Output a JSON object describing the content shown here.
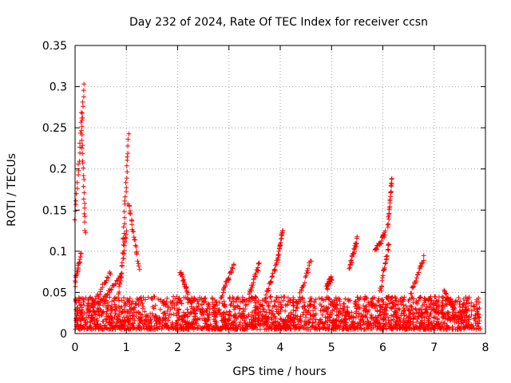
{
  "chart_data": {
    "type": "scatter",
    "title": "Day 232 of 2024, Rate Of TEC Index for receiver ccsn",
    "xlabel": "GPS time / hours",
    "ylabel": "ROTI / TECUs",
    "xlim": [
      0,
      8
    ],
    "ylim": [
      0,
      0.35
    ],
    "xticks": [
      0,
      1,
      2,
      3,
      4,
      5,
      6,
      7,
      8
    ],
    "xtick_labels": [
      "0",
      "1",
      "2",
      "3",
      "4",
      "5",
      "6",
      "7",
      "8"
    ],
    "yticks": [
      0,
      0.05,
      0.1,
      0.15,
      0.2,
      0.25,
      0.3,
      0.35
    ],
    "ytick_labels": [
      "0",
      "0.05",
      "0.1",
      "0.15",
      "0.2",
      "0.25",
      "0.3",
      "0.35"
    ],
    "grid": true,
    "marker": "plus",
    "color": "#ff0000",
    "background_band": {
      "x_start": 0,
      "x_end": 7.9,
      "y_min": 0.005,
      "y_max": 0.045
    },
    "tracks": [
      {
        "x_start": 0.0,
        "x_end": 0.18,
        "y_start": 0.14,
        "y_end": 0.305
      },
      {
        "x_start": 0.0,
        "x_end": 0.12,
        "y_start": 0.06,
        "y_end": 0.1
      },
      {
        "x_start": 0.12,
        "x_end": 0.2,
        "y_start": 0.27,
        "y_end": 0.12
      },
      {
        "x_start": 0.3,
        "x_end": 0.7,
        "y_start": 0.03,
        "y_end": 0.075
      },
      {
        "x_start": 0.55,
        "x_end": 0.9,
        "y_start": 0.04,
        "y_end": 0.07
      },
      {
        "x_start": 0.85,
        "x_end": 1.0,
        "y_start": 0.05,
        "y_end": 0.125
      },
      {
        "x_start": 0.93,
        "x_end": 1.04,
        "y_start": 0.1,
        "y_end": 0.24
      },
      {
        "x_start": 1.04,
        "x_end": 1.25,
        "y_start": 0.16,
        "y_end": 0.08
      },
      {
        "x_start": 2.05,
        "x_end": 2.2,
        "y_start": 0.075,
        "y_end": 0.05
      },
      {
        "x_start": 2.85,
        "x_end": 3.1,
        "y_start": 0.045,
        "y_end": 0.085
      },
      {
        "x_start": 3.4,
        "x_end": 3.6,
        "y_start": 0.05,
        "y_end": 0.085
      },
      {
        "x_start": 3.7,
        "x_end": 3.95,
        "y_start": 0.04,
        "y_end": 0.09
      },
      {
        "x_start": 3.95,
        "x_end": 4.05,
        "y_start": 0.09,
        "y_end": 0.128
      },
      {
        "x_start": 4.3,
        "x_end": 4.6,
        "y_start": 0.03,
        "y_end": 0.09
      },
      {
        "x_start": 4.9,
        "x_end": 5.0,
        "y_start": 0.055,
        "y_end": 0.068
      },
      {
        "x_start": 5.35,
        "x_end": 5.5,
        "y_start": 0.08,
        "y_end": 0.115
      },
      {
        "x_start": 5.85,
        "x_end": 6.05,
        "y_start": 0.1,
        "y_end": 0.122
      },
      {
        "x_start": 5.95,
        "x_end": 6.12,
        "y_start": 0.05,
        "y_end": 0.11
      },
      {
        "x_start": 6.1,
        "x_end": 6.18,
        "y_start": 0.13,
        "y_end": 0.19
      },
      {
        "x_start": 6.55,
        "x_end": 6.8,
        "y_start": 0.05,
        "y_end": 0.092
      },
      {
        "x_start": 7.2,
        "x_end": 7.4,
        "y_start": 0.05,
        "y_end": 0.03
      }
    ]
  }
}
